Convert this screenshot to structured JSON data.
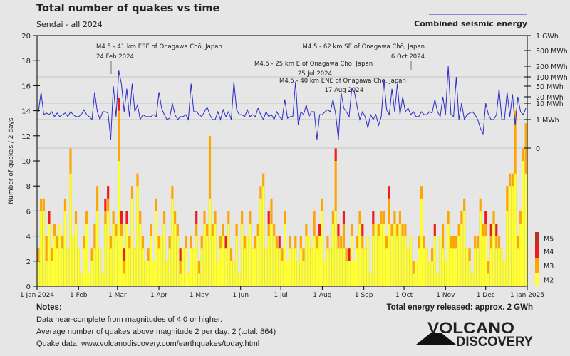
{
  "header": {
    "title": "Total number of quakes vs time",
    "subtitle": "Sendai - all 2024"
  },
  "notes": {
    "heading": "Notes:",
    "lines": [
      "Data near-complete from magnitudes of 4.0 or higher.",
      "Average number of quakes above magnitude 2 per day: 2 (total: 864)",
      "Quake data: www.volcanodiscovery.com/earthquakes/today.html"
    ],
    "energy_total": "Total energy released: approx. 2 GWh"
  },
  "logo": {
    "line1": "VOLCANO",
    "line2": "DISCOVERY"
  },
  "chart_data": {
    "type": "bar",
    "stacked": true,
    "bin": "2 days",
    "title": "Total number of quakes vs time",
    "subtitle": "Sendai - all 2024",
    "ylabel": "Number of quakes / 2 days",
    "ylim": [
      0,
      20
    ],
    "yticks": [
      "0",
      "2",
      "4",
      "6",
      "8",
      "10",
      "12",
      "14",
      "16",
      "18",
      "20"
    ],
    "xrange": [
      "2024-01-01",
      "2025-01-01"
    ],
    "xticks": [
      {
        "label": "1 Jan 2024",
        "date": "2024-01-01"
      },
      {
        "label": "1 Feb",
        "date": "2024-02-01"
      },
      {
        "label": "1 Mar",
        "date": "2024-03-01"
      },
      {
        "label": "1 Apr",
        "date": "2024-04-01"
      },
      {
        "label": "1 May",
        "date": "2024-05-01"
      },
      {
        "label": "1 Jun",
        "date": "2024-06-01"
      },
      {
        "label": "1 Jul",
        "date": "2024-07-01"
      },
      {
        "label": "1 Aug",
        "date": "2024-08-01"
      },
      {
        "label": "1 Sep",
        "date": "2024-09-01"
      },
      {
        "label": "1 Oct",
        "date": "2024-10-01"
      },
      {
        "label": "1 Nov",
        "date": "2024-11-01"
      },
      {
        "label": "1 Dec",
        "date": "2024-12-01"
      },
      {
        "label": "1 Jan 2025",
        "date": "2025-01-01"
      }
    ],
    "legend": {
      "placement": "right",
      "items": [
        {
          "name": "M5",
          "color": "#b8321c"
        },
        {
          "name": "M4",
          "color": "#ee1c1c"
        },
        {
          "name": "M3",
          "color": "#ffa500"
        },
        {
          "name": "M2",
          "color": "#ffff33"
        }
      ]
    },
    "series": [
      {
        "name": "M2",
        "color": "#ffff33",
        "values": [
          2,
          6,
          6,
          2,
          5,
          2,
          4,
          3,
          5,
          3,
          6,
          3,
          9,
          4,
          5,
          3,
          1,
          3,
          5,
          1,
          2,
          3,
          6,
          3,
          1,
          5,
          6,
          3,
          5,
          4,
          10,
          4,
          1,
          5,
          3,
          7,
          3,
          8,
          5,
          3,
          2,
          2,
          4,
          2,
          6,
          3,
          4,
          5,
          2,
          3,
          7,
          5,
          4,
          1,
          3,
          3,
          1,
          3,
          3,
          4,
          1,
          3,
          5,
          4,
          7,
          4,
          5,
          2,
          3,
          4,
          3,
          5,
          2,
          2,
          4,
          1,
          5,
          3,
          4,
          5,
          3,
          3,
          4,
          7,
          8,
          3,
          4,
          5,
          4,
          3,
          3,
          2,
          5,
          2,
          3,
          3,
          3,
          2,
          3,
          2,
          4,
          4,
          3,
          4,
          3,
          4,
          6,
          2,
          3,
          3,
          5,
          6,
          3,
          3,
          3,
          2,
          2,
          4,
          2,
          3,
          5,
          3,
          3,
          4,
          1,
          4,
          5,
          4,
          5,
          5,
          3,
          5,
          4,
          5,
          4,
          5,
          4,
          4,
          3,
          4,
          1,
          2,
          3,
          7,
          3,
          3,
          2,
          2,
          4,
          1,
          4,
          3,
          2,
          5,
          3,
          3,
          3,
          4,
          5,
          6,
          3,
          2,
          1,
          3,
          3,
          6,
          4,
          4,
          1,
          3,
          5,
          3,
          3,
          3,
          2,
          6,
          8,
          8,
          9,
          3,
          5,
          10,
          9
        ]
      },
      {
        "name": "M3",
        "color": "#ffa500",
        "values": [
          1,
          1,
          1,
          2,
          0,
          1,
          1,
          1,
          0,
          1,
          1,
          0,
          2,
          0,
          1,
          0,
          0,
          1,
          1,
          0,
          1,
          2,
          2,
          0,
          0,
          1,
          1,
          1,
          1,
          1,
          4,
          1,
          1,
          0,
          1,
          1,
          0,
          1,
          1,
          1,
          0,
          1,
          1,
          0,
          1,
          1,
          0,
          1,
          0,
          1,
          1,
          1,
          1,
          1,
          0,
          1,
          0,
          1,
          0,
          1,
          1,
          1,
          1,
          1,
          5,
          1,
          1,
          0,
          1,
          1,
          0,
          1,
          1,
          0,
          1,
          0,
          1,
          1,
          0,
          1,
          0,
          1,
          1,
          1,
          1,
          0,
          1,
          2,
          1,
          1,
          0,
          1,
          1,
          0,
          1,
          0,
          1,
          0,
          1,
          1,
          1,
          0,
          0,
          2,
          1,
          0,
          1,
          0,
          1,
          0,
          1,
          4,
          1,
          1,
          2,
          1,
          0,
          1,
          0,
          1,
          1,
          1,
          0,
          0,
          0,
          1,
          0,
          1,
          1,
          1,
          1,
          2,
          1,
          1,
          1,
          1,
          1,
          1,
          0,
          0,
          1,
          0,
          1,
          1,
          1,
          0,
          0,
          1,
          0,
          0,
          0,
          2,
          0,
          1,
          1,
          1,
          1,
          1,
          1,
          1,
          0,
          1,
          0,
          1,
          1,
          1,
          1,
          1,
          1,
          1,
          1,
          1,
          1,
          0,
          0,
          2,
          1,
          1,
          5,
          1,
          1,
          1,
          4
        ]
      },
      {
        "name": "M4",
        "color": "#ee1c1c",
        "values": [
          0,
          0,
          0,
          0,
          1,
          0,
          0,
          0,
          0,
          0,
          0,
          0,
          0,
          0,
          0,
          0,
          0,
          0,
          0,
          0,
          0,
          0,
          0,
          0,
          0,
          1,
          1,
          0,
          0,
          0,
          1,
          1,
          1,
          1,
          0,
          0,
          0,
          0,
          0,
          0,
          0,
          0,
          0,
          0,
          0,
          0,
          0,
          0,
          0,
          0,
          0,
          0,
          0,
          1,
          0,
          0,
          0,
          0,
          0,
          1,
          0,
          0,
          0,
          0,
          0,
          0,
          0,
          0,
          0,
          0,
          1,
          0,
          0,
          0,
          0,
          0,
          0,
          0,
          0,
          0,
          0,
          0,
          0,
          0,
          0,
          0,
          1,
          0,
          0,
          0,
          1,
          0,
          0,
          0,
          0,
          0,
          0,
          0,
          0,
          0,
          0,
          0,
          0,
          0,
          0,
          1,
          0,
          0,
          0,
          0,
          0,
          1,
          1,
          0,
          1,
          0,
          1,
          0,
          0,
          0,
          0,
          1,
          0,
          0,
          0,
          1,
          0,
          0,
          0,
          0,
          0,
          1,
          0,
          0,
          0,
          0,
          0,
          0,
          0,
          0,
          0,
          0,
          0,
          0,
          0,
          0,
          0,
          0,
          1,
          0,
          0,
          0,
          0,
          0,
          0,
          0,
          0,
          0,
          0,
          0,
          0,
          0,
          0,
          0,
          0,
          0,
          0,
          1,
          0,
          1,
          0,
          1,
          0,
          0,
          0,
          0,
          0,
          0,
          0,
          0,
          0,
          0,
          0
        ]
      },
      {
        "name": "M5",
        "color": "#b8321c",
        "values": []
      }
    ],
    "energy": {
      "name": "Combined seismic energy",
      "color": "#2b2bc8",
      "unit": "MWh",
      "scale": "log",
      "ticks": [
        {
          "label": "0",
          "value": 0
        },
        {
          "label": "1 MWh",
          "value": 1
        },
        {
          "label": "10 MWh",
          "value": 10
        },
        {
          "label": "20 MWh",
          "value": 20
        },
        {
          "label": "50 MWh",
          "value": 50
        },
        {
          "label": "100 MWh",
          "value": 100
        },
        {
          "label": "200 MWh",
          "value": 200
        },
        {
          "label": "500 MWh",
          "value": 500
        },
        {
          "label": "1 GWh",
          "value": 1000
        }
      ],
      "gridlines": [
        0,
        1,
        10,
        100
      ],
      "values": [
        3,
        30,
        2,
        2.5,
        2,
        3,
        1.5,
        2.5,
        1.5,
        2,
        2.5,
        1.5,
        3,
        2,
        1.5,
        1.5,
        2,
        4,
        2,
        1.5,
        1,
        30,
        3,
        1,
        3,
        3,
        2.5,
        0.3,
        50,
        1.5,
        150,
        60,
        3,
        40,
        1.5,
        60,
        3,
        8,
        1,
        2,
        1.5,
        1.5,
        1.5,
        2,
        1.5,
        30,
        5,
        2,
        1,
        1.2,
        10,
        2,
        1,
        1.5,
        1.5,
        2,
        1,
        60,
        3,
        3,
        2,
        1.5,
        3,
        6,
        2,
        1,
        1,
        3,
        1,
        4,
        1.5,
        3,
        1,
        70,
        4,
        2,
        2,
        1.5,
        4,
        1.5,
        2,
        1.5,
        5,
        2,
        1,
        3,
        1.5,
        2,
        1,
        3,
        1.5,
        1,
        15,
        1.2,
        1.5,
        1.5,
        70,
        0.8,
        3,
        2,
        8,
        1.5,
        3,
        3,
        0.3,
        2,
        2,
        3,
        4,
        3,
        15,
        2,
        0.3,
        30,
        5,
        3,
        1.5,
        40,
        30,
        6,
        1,
        3,
        1.5,
        0.7,
        2,
        1,
        2,
        0.8,
        1.5,
        80,
        4,
        2,
        40,
        3,
        60,
        2,
        20,
        3,
        5,
        2,
        3,
        1.5,
        1.5,
        3,
        2,
        2,
        3,
        2.5,
        15,
        3,
        1.5,
        20,
        2,
        200,
        2,
        1.5,
        100,
        1,
        10,
        1,
        2,
        2.5,
        3,
        2,
        1,
        0.7,
        0.5,
        10,
        2,
        1,
        1,
        2,
        40,
        1,
        1,
        30,
        1.5,
        25,
        0.8,
        20,
        3,
        2,
        5
      ]
    },
    "annotations": [
      {
        "text": "M4.5 - 41 km ESE of Onagawa Chō, Japan",
        "date_label": "24 Feb 2024",
        "date": "2024-02-24"
      },
      {
        "text": "M4.5 - 62 km SE of Onagawa Chō, Japan",
        "date_label": "6 Oct 2024",
        "date": "2024-10-06"
      },
      {
        "text": "M4.5 - 25 km E of Onagawa Chō, Japan",
        "date_label": "25 Jul 2024",
        "date": "2024-07-25"
      },
      {
        "text": "M4.5 - 40 km ENE of Onagawa Chō, Japan",
        "date_label": "17 Aug 2024",
        "date": "2024-08-17"
      }
    ],
    "grid": true
  }
}
